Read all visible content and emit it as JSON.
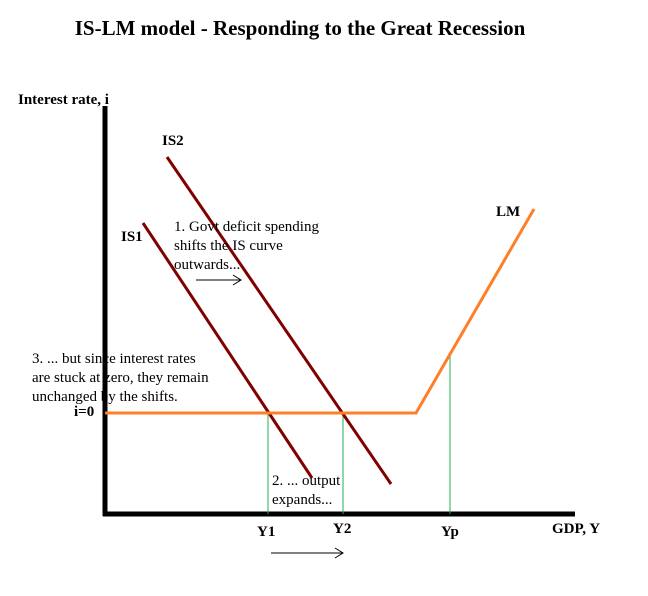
{
  "title": "IS-LM model - Responding to the Great Recession",
  "axes": {
    "y_label": "Interest rate, i",
    "x_label": "GDP, Y"
  },
  "curves": {
    "is1": "IS1",
    "is2": "IS2",
    "lm": "LM"
  },
  "levels": {
    "i_zero": "i=0",
    "y1": "Y1",
    "y2": "Y2",
    "yp": "Yp"
  },
  "annotations": {
    "step1": "1. Govt deficit spending\nshifts the IS curve\noutwards...",
    "step2": "2. ... output\nexpands...",
    "step3": "3. ... but since interest rates\nare stuck at zero, they remain\nunchanged by the shifts."
  },
  "colors": {
    "is": "#800000",
    "lm": "#ff7f27",
    "guide": "#22b14c",
    "axis": "#000000"
  }
}
